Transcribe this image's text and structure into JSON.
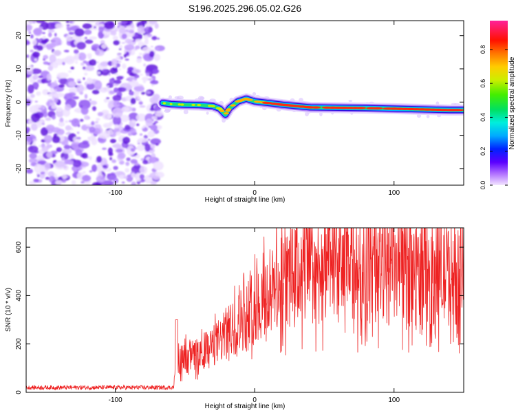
{
  "title": "S196.2025.296.05.02.G26",
  "colors": {
    "snr_line": "#ee2222",
    "spec_purple": "#8a2be2",
    "background": "#ffffff",
    "axis": "#000000"
  },
  "chart_data": [
    {
      "type": "heatmap",
      "title": "S196.2025.296.05.02.G26",
      "xlabel": "Height of straight line (km)",
      "ylabel": "Frequency (Hz)",
      "xlim": [
        -164,
        150
      ],
      "ylim": [
        -25,
        24.5
      ],
      "xticks": [
        -100,
        0,
        100
      ],
      "xtick_labels": [
        "-100",
        "0",
        "100"
      ],
      "yticks": [
        -20,
        -10,
        0,
        10,
        20
      ],
      "ytick_labels": [
        "-20",
        "-10",
        "0",
        "10",
        "20"
      ],
      "noise_region_x": [
        -164,
        -68
      ],
      "ridge": [
        {
          "x": -66,
          "y": -0.3
        },
        {
          "x": -60,
          "y": -0.6
        },
        {
          "x": -50,
          "y": -0.8
        },
        {
          "x": -40,
          "y": -0.9
        },
        {
          "x": -30,
          "y": -1.2
        },
        {
          "x": -25,
          "y": -2.0
        },
        {
          "x": -21,
          "y": -3.8
        },
        {
          "x": -18,
          "y": -1.8
        },
        {
          "x": -12,
          "y": 0.2
        },
        {
          "x": -6,
          "y": 1.0
        },
        {
          "x": 0,
          "y": 0.2
        },
        {
          "x": 10,
          "y": -0.3
        },
        {
          "x": 20,
          "y": -0.8
        },
        {
          "x": 30,
          "y": -1.2
        },
        {
          "x": 40,
          "y": -1.6
        },
        {
          "x": 60,
          "y": -1.7
        },
        {
          "x": 80,
          "y": -1.8
        },
        {
          "x": 100,
          "y": -2.0
        },
        {
          "x": 120,
          "y": -2.2
        },
        {
          "x": 140,
          "y": -2.4
        },
        {
          "x": 150,
          "y": -2.4
        }
      ],
      "colorbar": {
        "label": "Normalized spectral amplitude",
        "range": [
          0.0,
          0.97
        ],
        "ticks": [
          0.0,
          0.2,
          0.4,
          0.6,
          0.8
        ],
        "tick_labels": [
          "0.0",
          "0.2",
          "0.4",
          "0.6",
          "0.8"
        ]
      }
    },
    {
      "type": "line",
      "xlabel": "Height of straight line (km)",
      "ylabel": "SNR (10 * v/v)",
      "xlim": [
        -164,
        150
      ],
      "ylim": [
        0,
        680
      ],
      "xticks": [
        -100,
        0,
        100
      ],
      "xtick_labels": [
        "-100",
        "0",
        "100"
      ],
      "yticks": [
        0,
        200,
        400,
        600
      ],
      "ytick_labels": [
        "0",
        "200",
        "400",
        "600"
      ],
      "envelope": [
        {
          "x": -164,
          "mean": 20
        },
        {
          "x": -58,
          "mean": 20
        },
        {
          "x": -56,
          "mean": 130
        },
        {
          "x": -50,
          "mean": 140
        },
        {
          "x": -40,
          "mean": 160
        },
        {
          "x": -30,
          "mean": 190
        },
        {
          "x": -20,
          "mean": 240
        },
        {
          "x": -10,
          "mean": 300
        },
        {
          "x": 0,
          "mean": 360
        },
        {
          "x": 10,
          "mean": 400
        },
        {
          "x": 20,
          "mean": 450
        },
        {
          "x": 30,
          "mean": 500
        },
        {
          "x": 60,
          "mean": 510
        },
        {
          "x": 100,
          "mean": 500
        },
        {
          "x": 150,
          "mean": 490
        }
      ]
    }
  ]
}
